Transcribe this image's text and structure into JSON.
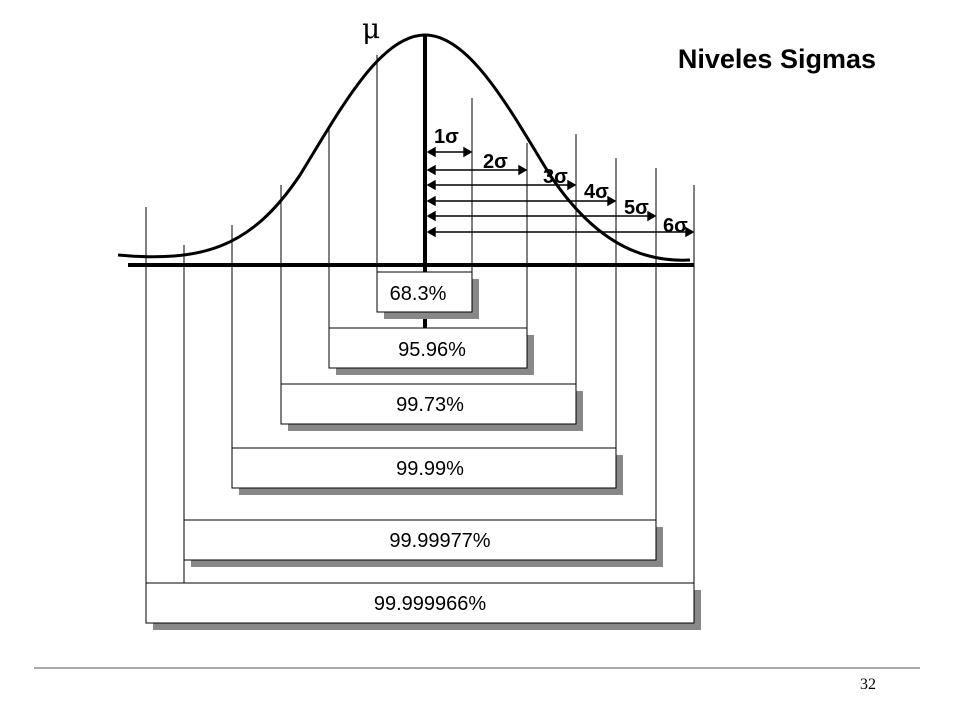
{
  "title": "Niveles Sigmas",
  "mean_label": "μ",
  "page_number": "32",
  "sigma_labels": [
    "1σ",
    "2σ",
    "3σ",
    "4σ",
    "5σ",
    "6σ"
  ],
  "percent_labels": [
    "68.3%",
    "95.96%",
    "99.73%",
    "99.99%",
    "99.99977%",
    "99.999966%"
  ],
  "colors": {
    "line": "#000000",
    "box_fill": "#ffffff",
    "shadow": "#888888",
    "rule": "#555555"
  }
}
